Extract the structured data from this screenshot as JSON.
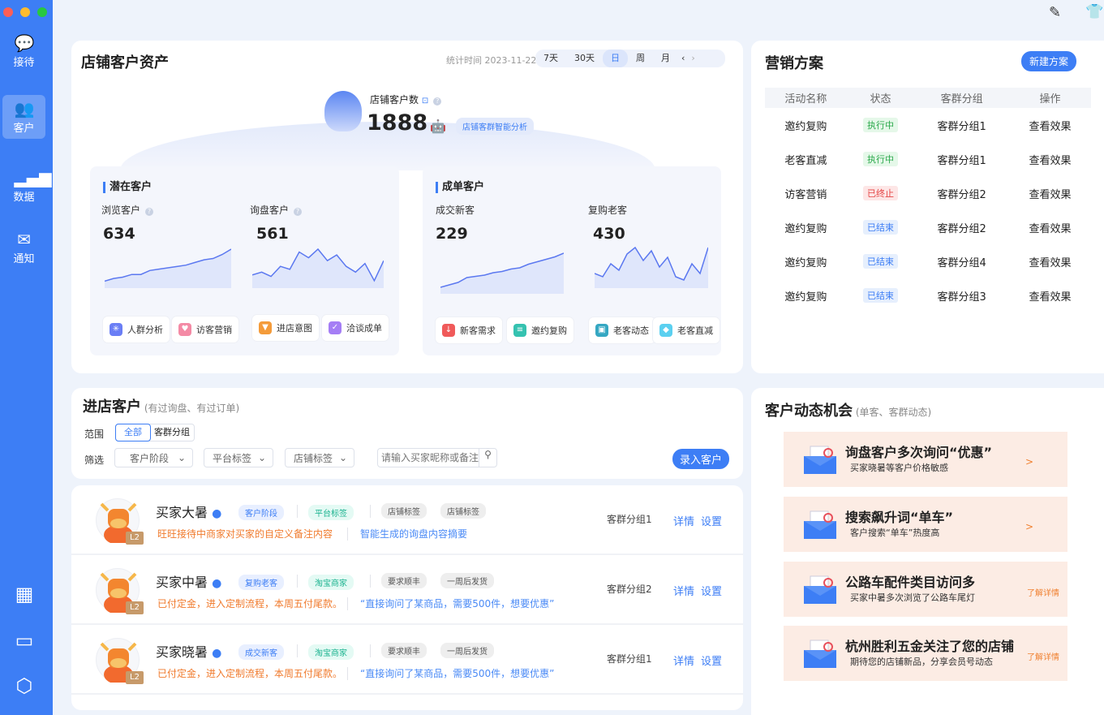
{
  "colors": {
    "brand": "#3d7ef5",
    "sidebar": "#3d7ef5",
    "orange": "#f07a2c"
  },
  "sidebar": {
    "items": [
      {
        "label": "接待",
        "icon": "chat-bubble-icon"
      },
      {
        "label": "客户",
        "icon": "users-icon",
        "active": true
      },
      {
        "label": "数据",
        "icon": "bar-chart-icon"
      },
      {
        "label": "通知",
        "icon": "mail-icon"
      }
    ],
    "bottom_icons": [
      "grid-icon",
      "window-icon",
      "hexagon-settings-icon"
    ]
  },
  "topbar": {
    "icons": [
      "edit-icon",
      "shirt-icon"
    ]
  },
  "assets": {
    "title": "店铺客户资产",
    "stat_time": "统计时间 2023-11-22",
    "ranges": [
      "7天",
      "30天",
      "日",
      "周",
      "月"
    ],
    "active_range": "日",
    "total_label": "店铺客户数",
    "total_value": "1888",
    "ai_button": "店铺客群智能分析",
    "potential": {
      "title": "潜在客户",
      "metrics": [
        {
          "label": "浏览客户",
          "value": "634",
          "trend": [
            10,
            12,
            13,
            15,
            15,
            18,
            19,
            20,
            21,
            22,
            24,
            26,
            27,
            30,
            34
          ]
        },
        {
          "label": "询盘客户",
          "value": "561",
          "trend": [
            12,
            14,
            11,
            18,
            16,
            28,
            24,
            30,
            22,
            26,
            18,
            14,
            20,
            8,
            22
          ]
        }
      ],
      "actions": [
        "人群分析",
        "访客营销",
        "进店意图",
        "洽谈成单"
      ]
    },
    "deal": {
      "title": "成单客户",
      "metrics": [
        {
          "label": "成交新客",
          "value": "229",
          "trend": [
            8,
            10,
            12,
            16,
            17,
            18,
            20,
            21,
            23,
            24,
            27,
            29,
            31,
            33,
            36
          ]
        },
        {
          "label": "复购老客",
          "value": "430",
          "trend": [
            14,
            12,
            20,
            16,
            26,
            30,
            22,
            28,
            18,
            24,
            12,
            10,
            20,
            14,
            30
          ]
        }
      ],
      "actions": [
        "新客需求",
        "邀约复购",
        "老客动态",
        "老客直减"
      ]
    }
  },
  "marketing": {
    "title": "营销方案",
    "new_button": "新建方案",
    "columns": [
      "活动名称",
      "状态",
      "客群分组",
      "操作"
    ],
    "rows": [
      {
        "name": "邀约复购",
        "status": "执行中",
        "status_type": "running",
        "group": "客群分组1",
        "action": "查看效果"
      },
      {
        "name": "老客直减",
        "status": "执行中",
        "status_type": "running",
        "group": "客群分组1",
        "action": "查看效果"
      },
      {
        "name": "访客营销",
        "status": "已终止",
        "status_type": "stopped",
        "group": "客群分组2",
        "action": "查看效果"
      },
      {
        "name": "邀约复购",
        "status": "已结束",
        "status_type": "ended",
        "group": "客群分组2",
        "action": "查看效果"
      },
      {
        "name": "邀约复购",
        "status": "已结束",
        "status_type": "ended",
        "group": "客群分组4",
        "action": "查看效果"
      },
      {
        "name": "邀约复购",
        "status": "已结束",
        "status_type": "ended",
        "group": "客群分组3",
        "action": "查看效果"
      }
    ]
  },
  "instore": {
    "title": "进店客户",
    "subtitle": "(有过询盘、有过订单)",
    "scope_label": "范围",
    "scope_options": [
      "全部",
      "客群分组"
    ],
    "filter_label": "筛选",
    "filters": [
      "客户阶段",
      "平台标签",
      "店铺标签"
    ],
    "search_placeholder": "请输入买家昵称或备注",
    "add_button": "录入客户",
    "customers": [
      {
        "name": "买家大暑",
        "level": "L2",
        "tags": [
          "客户阶段",
          "平台标签",
          "店铺标签",
          "店铺标签"
        ],
        "note": "旺旺接待中商家对买家的自定义备注内容",
        "ai_summary": "智能生成的询盘内容摘要",
        "group": "客群分组1",
        "detail": "详情",
        "settings": "设置"
      },
      {
        "name": "买家中暑",
        "level": "L2",
        "tags": [
          "复购老客",
          "淘宝商家",
          "要求顺丰",
          "一周后发货"
        ],
        "note": "已付定金，进入定制流程，本周五付尾款。",
        "ai_summary": "“直接询问了某商品，需要500件，想要优惠”",
        "group": "客群分组2",
        "detail": "详情",
        "settings": "设置"
      },
      {
        "name": "买家晓暑",
        "level": "L2",
        "tags": [
          "成交新客",
          "淘宝商家",
          "要求顺丰",
          "一周后发货"
        ],
        "note": "已付定金，进入定制流程，本周五付尾款。",
        "ai_summary": "“直接询问了某商品，需要500件，想要优惠”",
        "group": "客群分组1",
        "detail": "详情",
        "settings": "设置"
      }
    ]
  },
  "opportunities": {
    "title": "客户动态机会",
    "subtitle": "(单客、客群动态)",
    "items": [
      {
        "title": "询盘客户多次询问“优惠”",
        "desc": "买家晓暑等客户价格敏感",
        "action": ">"
      },
      {
        "title": "搜索飙升词“单车”",
        "desc": "客户搜索“单车”热度高",
        "action": ">"
      },
      {
        "title": "公路车配件类目访问多",
        "desc": "买家中暑多次浏览了公路车尾灯",
        "action": "了解详情"
      },
      {
        "title": "杭州胜利五金关注了您的店铺",
        "desc": "期待您的店铺新品，分享会员号动态",
        "action": "了解详情"
      }
    ]
  }
}
